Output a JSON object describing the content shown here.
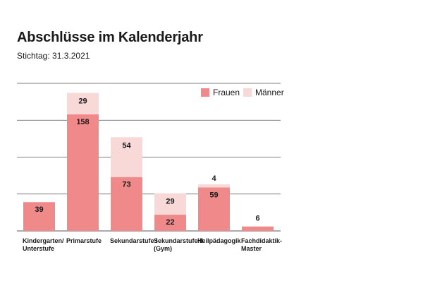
{
  "title": "Abschlüsse im Kalenderjahr",
  "subtitle": "Stichtag: 31.3.2021",
  "colors": {
    "frauen": "#f08a8a",
    "maenner": "#f9d8d8",
    "grid": "#555555"
  },
  "chart_data": {
    "type": "bar",
    "stacked": true,
    "categories": [
      [
        "Kindergarten/",
        "Unterstufe"
      ],
      [
        "Primarstufe"
      ],
      [
        "Sekundarstufe I"
      ],
      [
        "Sekundarstufe II",
        "(Gym)"
      ],
      [
        "Heilpädagogik"
      ],
      [
        "Fachdidaktik-",
        "Master"
      ]
    ],
    "series": [
      {
        "name": "Frauen",
        "values": [
          39,
          158,
          73,
          22,
          59,
          6
        ]
      },
      {
        "name": "Männer",
        "values": [
          0,
          29,
          54,
          29,
          4,
          0
        ]
      }
    ],
    "ylim": [
      0,
      200
    ],
    "grid": true,
    "legend": "top-right"
  }
}
